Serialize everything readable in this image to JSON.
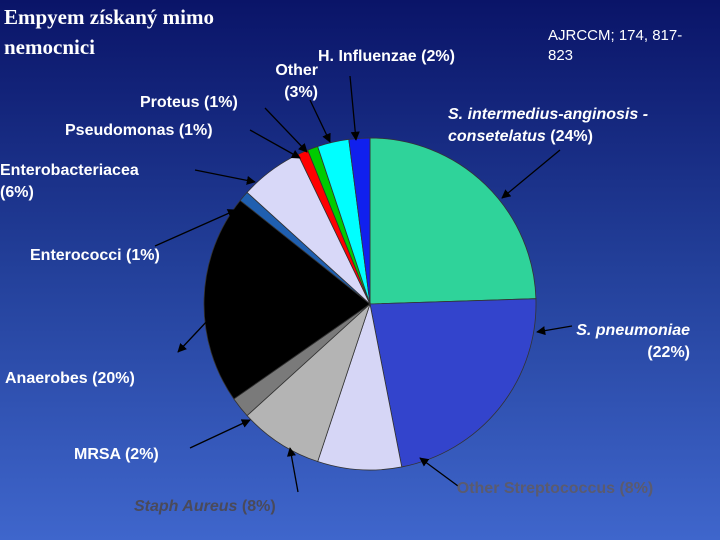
{
  "chart_data": {
    "type": "pie",
    "title": "Empyem získaný mimo nemocnici",
    "source": "AJRCCM; 174, 817-823",
    "categories": [
      "S. intermedius-anginosis -consetelatus",
      "S. pneumoniae",
      "Other Streptococcus",
      "Staph Aureus",
      "MRSA",
      "Anaerobes",
      "Enterococci",
      "Enterobacteriacea",
      "Pseudomonas",
      "Proteus",
      "Other",
      "H. Influenzae"
    ],
    "values": [
      24,
      22,
      8,
      8,
      2,
      20,
      1,
      6,
      1,
      1,
      3,
      2
    ],
    "value_labels": [
      "(24%)",
      "(22%)",
      "(8%)",
      "(8%)",
      "(2%)",
      "(20%)",
      "(1%)",
      "(6%)",
      "(1%)",
      "(1%)",
      "(3%)",
      "(2%)"
    ],
    "colors": [
      "#2fd39a",
      "#3344cc",
      "#d6d6f6",
      "#b4b4b4",
      "#7a7a7a",
      "#000000",
      "#1f5fb0",
      "#d8d8f8",
      "#ff0000",
      "#00cc00",
      "#00ffff",
      "#1020ee"
    ]
  }
}
